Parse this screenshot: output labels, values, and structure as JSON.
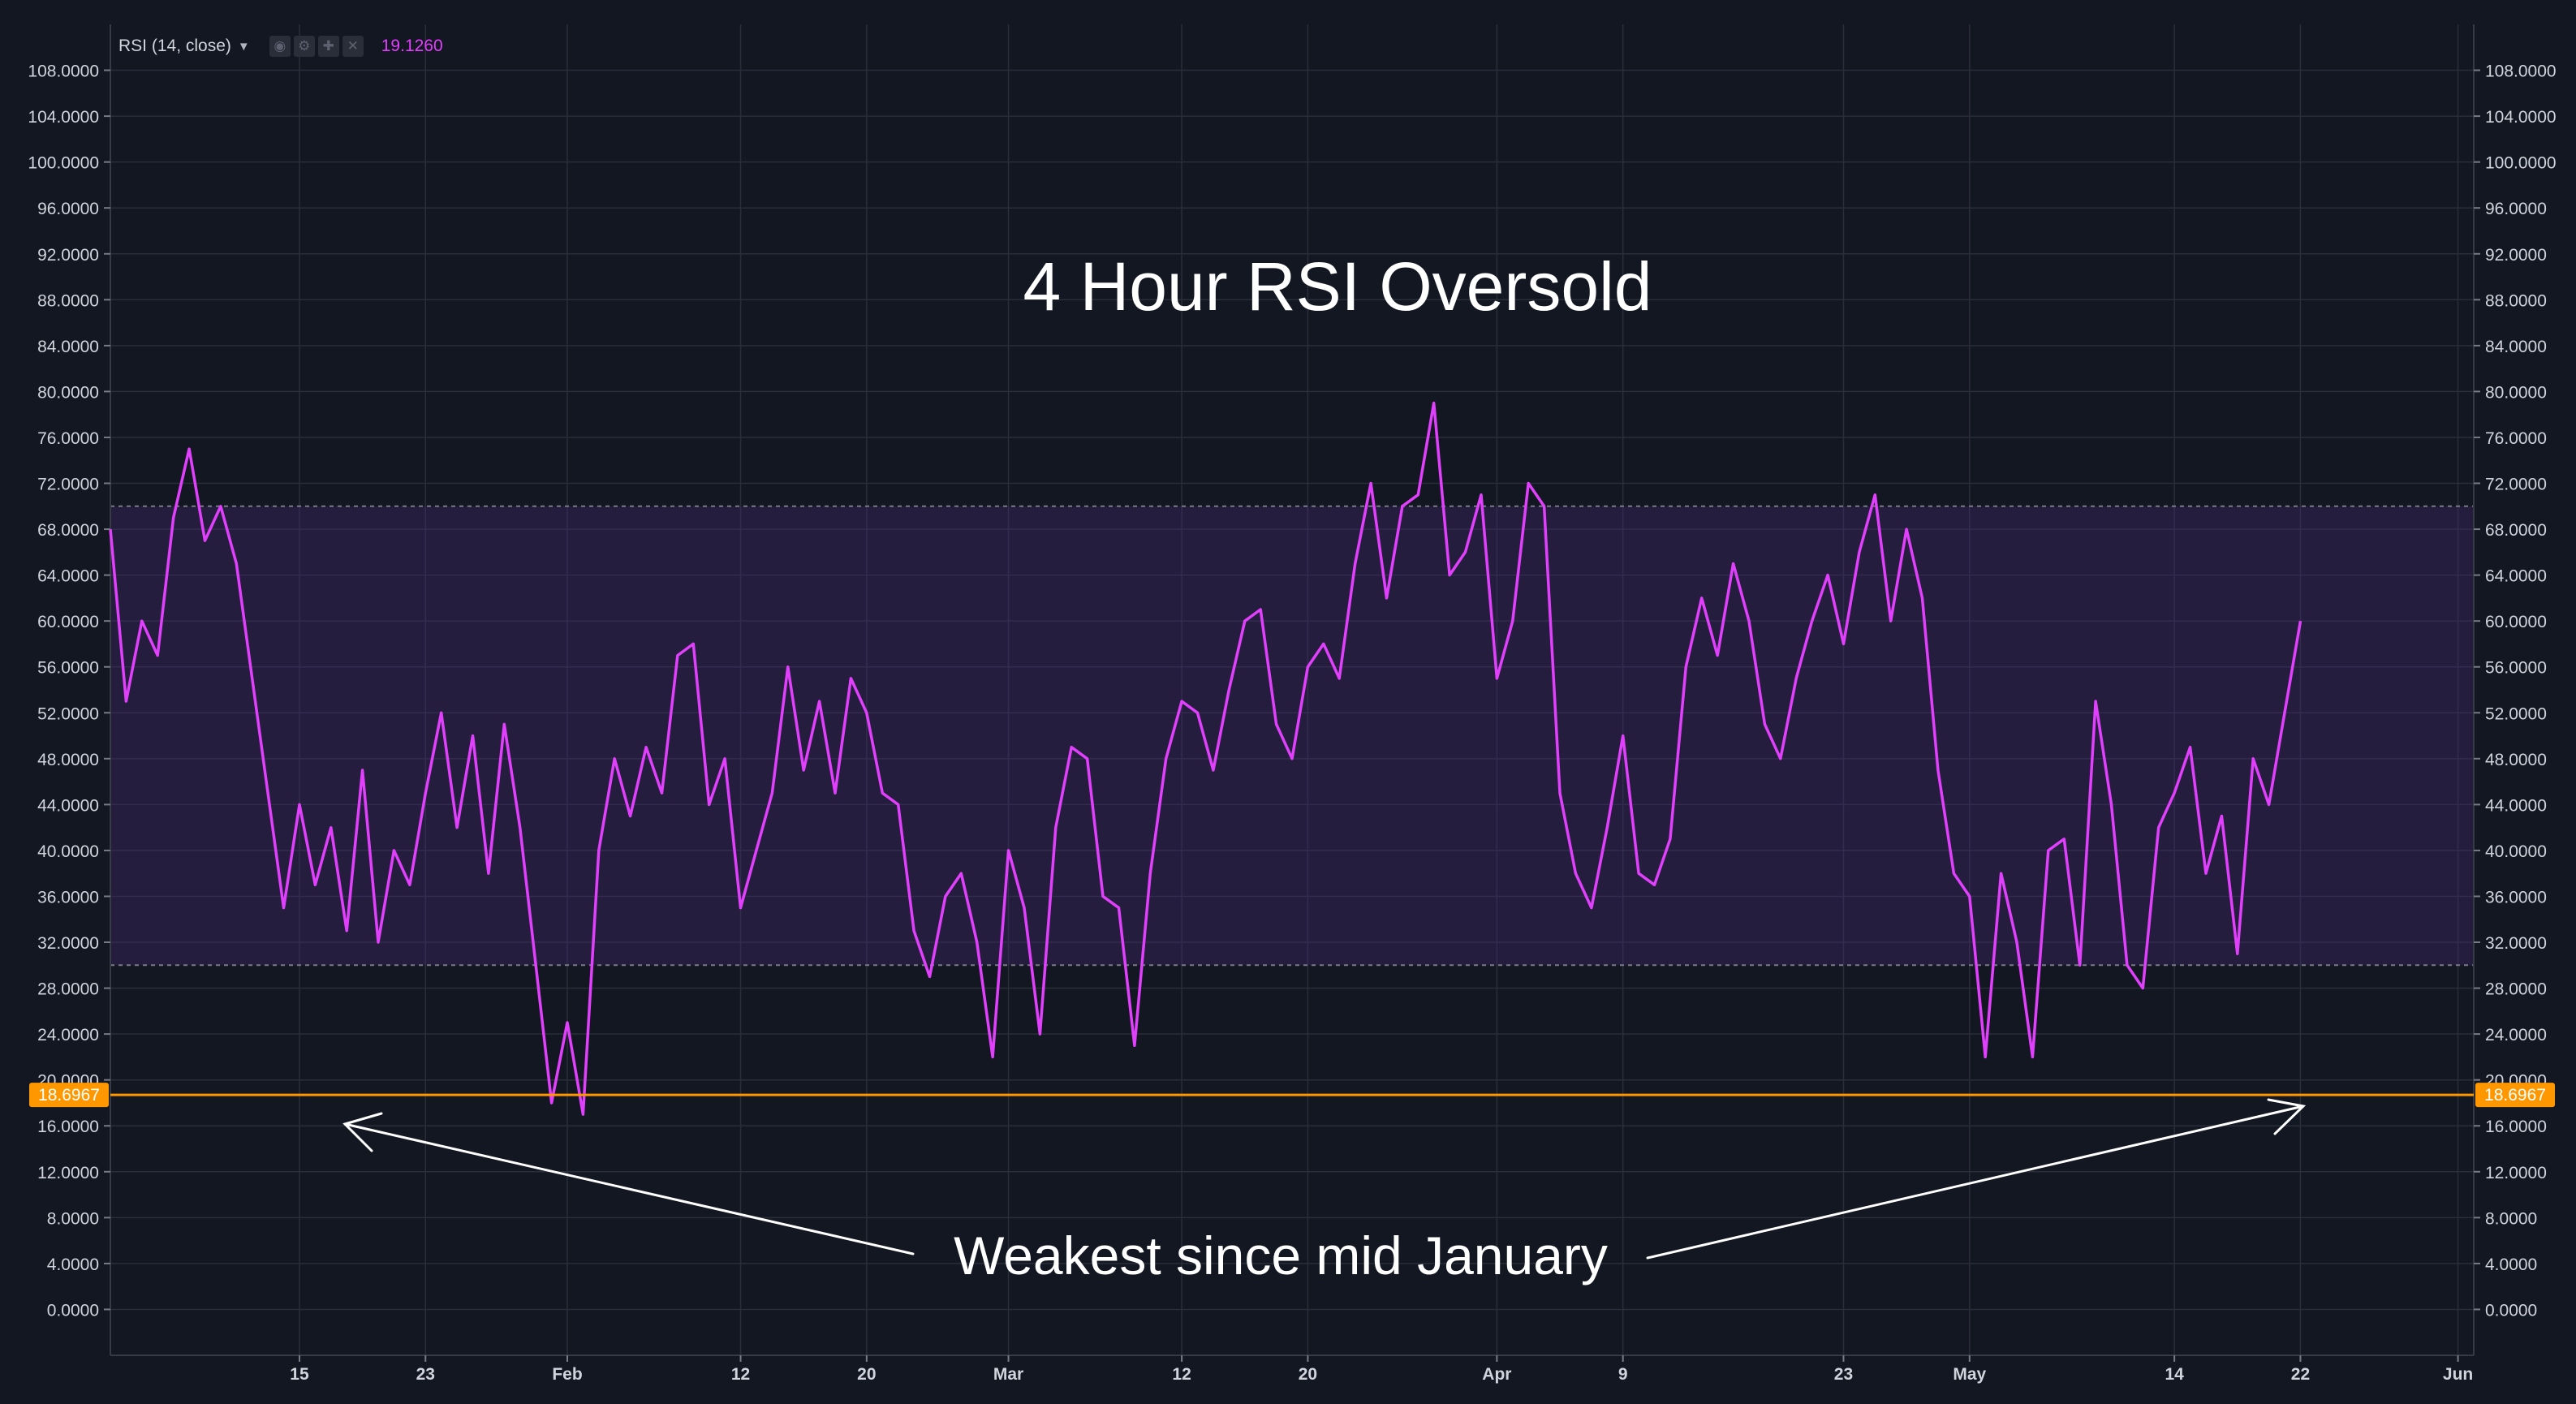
{
  "chart_data": {
    "type": "line",
    "title": "4 Hour RSI Oversold",
    "indicator_label": "RSI (14, close)",
    "current_value": "19.1260",
    "annotation": "Weakest since mid January",
    "marked_level": {
      "value": 18.6967,
      "label": "18.6967",
      "color": "#ff9800"
    },
    "band": {
      "upper": 70,
      "lower": 30
    },
    "ylim": [
      -4,
      112
    ],
    "y_ticks": [
      "0.0000",
      "4.0000",
      "8.0000",
      "12.0000",
      "16.0000",
      "20.0000",
      "24.0000",
      "28.0000",
      "32.0000",
      "36.0000",
      "40.0000",
      "44.0000",
      "48.0000",
      "52.0000",
      "56.0000",
      "60.0000",
      "64.0000",
      "68.0000",
      "72.0000",
      "76.0000",
      "80.0000",
      "84.0000",
      "88.0000",
      "92.0000",
      "96.0000",
      "100.0000",
      "104.0000",
      "108.0000"
    ],
    "x_ticks": [
      {
        "label": "15",
        "date": "2018-01-15"
      },
      {
        "label": "23",
        "date": "2018-01-23"
      },
      {
        "label": "Feb",
        "date": "2018-02-01"
      },
      {
        "label": "12",
        "date": "2018-02-12"
      },
      {
        "label": "20",
        "date": "2018-02-20"
      },
      {
        "label": "Mar",
        "date": "2018-03-01"
      },
      {
        "label": "12",
        "date": "2018-03-12"
      },
      {
        "label": "20",
        "date": "2018-03-20"
      },
      {
        "label": "Apr",
        "date": "2018-04-01"
      },
      {
        "label": "9",
        "date": "2018-04-09"
      },
      {
        "label": "23",
        "date": "2018-04-23"
      },
      {
        "label": "May",
        "date": "2018-05-01"
      },
      {
        "label": "14",
        "date": "2018-05-14"
      },
      {
        "label": "22",
        "date": "2018-05-22"
      },
      {
        "label": "Jun",
        "date": "2018-06-01"
      }
    ],
    "xlim": [
      "2018-01-03",
      "2018-06-02"
    ],
    "series": [
      {
        "color": "#e040fb",
        "points": [
          [
            "2018-01-03",
            68
          ],
          [
            "2018-01-04",
            53
          ],
          [
            "2018-01-05",
            60
          ],
          [
            "2018-01-06",
            57
          ],
          [
            "2018-01-07",
            69
          ],
          [
            "2018-01-08",
            75
          ],
          [
            "2018-01-09",
            67
          ],
          [
            "2018-01-10",
            70
          ],
          [
            "2018-01-11",
            65
          ],
          [
            "2018-01-12",
            55
          ],
          [
            "2018-01-13",
            45
          ],
          [
            "2018-01-14",
            35
          ],
          [
            "2018-01-15",
            44
          ],
          [
            "2018-01-16",
            37
          ],
          [
            "2018-01-17",
            42
          ],
          [
            "2018-01-18",
            33
          ],
          [
            "2018-01-19",
            47
          ],
          [
            "2018-01-20",
            32
          ],
          [
            "2018-01-21",
            40
          ],
          [
            "2018-01-22",
            37
          ],
          [
            "2018-01-23",
            45
          ],
          [
            "2018-01-24",
            52
          ],
          [
            "2018-01-25",
            42
          ],
          [
            "2018-01-26",
            50
          ],
          [
            "2018-01-27",
            38
          ],
          [
            "2018-01-28",
            51
          ],
          [
            "2018-01-29",
            42
          ],
          [
            "2018-01-30",
            30
          ],
          [
            "2018-01-31",
            18
          ],
          [
            "2018-02-01",
            25
          ],
          [
            "2018-02-02",
            17
          ],
          [
            "2018-02-03",
            40
          ],
          [
            "2018-02-04",
            48
          ],
          [
            "2018-02-05",
            43
          ],
          [
            "2018-02-06",
            49
          ],
          [
            "2018-02-07",
            45
          ],
          [
            "2018-02-08",
            57
          ],
          [
            "2018-02-09",
            58
          ],
          [
            "2018-02-10",
            44
          ],
          [
            "2018-02-11",
            48
          ],
          [
            "2018-02-12",
            35
          ],
          [
            "2018-02-13",
            40
          ],
          [
            "2018-02-14",
            45
          ],
          [
            "2018-02-15",
            56
          ],
          [
            "2018-02-16",
            47
          ],
          [
            "2018-02-17",
            53
          ],
          [
            "2018-02-18",
            45
          ],
          [
            "2018-02-19",
            55
          ],
          [
            "2018-02-20",
            52
          ],
          [
            "2018-02-21",
            45
          ],
          [
            "2018-02-22",
            44
          ],
          [
            "2018-02-23",
            33
          ],
          [
            "2018-02-24",
            29
          ],
          [
            "2018-02-25",
            36
          ],
          [
            "2018-02-26",
            38
          ],
          [
            "2018-02-27",
            32
          ],
          [
            "2018-02-28",
            22
          ],
          [
            "2018-03-01",
            40
          ],
          [
            "2018-03-02",
            35
          ],
          [
            "2018-03-03",
            24
          ],
          [
            "2018-03-04",
            42
          ],
          [
            "2018-03-05",
            49
          ],
          [
            "2018-03-06",
            48
          ],
          [
            "2018-03-07",
            36
          ],
          [
            "2018-03-08",
            35
          ],
          [
            "2018-03-09",
            23
          ],
          [
            "2018-03-10",
            38
          ],
          [
            "2018-03-11",
            48
          ],
          [
            "2018-03-12",
            53
          ],
          [
            "2018-03-13",
            52
          ],
          [
            "2018-03-14",
            47
          ],
          [
            "2018-03-15",
            54
          ],
          [
            "2018-03-16",
            60
          ],
          [
            "2018-03-17",
            61
          ],
          [
            "2018-03-18",
            51
          ],
          [
            "2018-03-19",
            48
          ],
          [
            "2018-03-20",
            56
          ],
          [
            "2018-03-21",
            58
          ],
          [
            "2018-03-22",
            55
          ],
          [
            "2018-03-23",
            65
          ],
          [
            "2018-03-24",
            72
          ],
          [
            "2018-03-25",
            62
          ],
          [
            "2018-03-26",
            70
          ],
          [
            "2018-03-27",
            71
          ],
          [
            "2018-03-28",
            79
          ],
          [
            "2018-03-29",
            64
          ],
          [
            "2018-03-30",
            66
          ],
          [
            "2018-03-31",
            71
          ],
          [
            "2018-04-01",
            55
          ],
          [
            "2018-04-02",
            60
          ],
          [
            "2018-04-03",
            72
          ],
          [
            "2018-04-04",
            70
          ],
          [
            "2018-04-05",
            45
          ],
          [
            "2018-04-06",
            38
          ],
          [
            "2018-04-07",
            35
          ],
          [
            "2018-04-08",
            42
          ],
          [
            "2018-04-09",
            50
          ],
          [
            "2018-04-10",
            38
          ],
          [
            "2018-04-11",
            37
          ],
          [
            "2018-04-12",
            41
          ],
          [
            "2018-04-13",
            56
          ],
          [
            "2018-04-14",
            62
          ],
          [
            "2018-04-15",
            57
          ],
          [
            "2018-04-16",
            65
          ],
          [
            "2018-04-17",
            60
          ],
          [
            "2018-04-18",
            51
          ],
          [
            "2018-04-19",
            48
          ],
          [
            "2018-04-20",
            55
          ],
          [
            "2018-04-21",
            60
          ],
          [
            "2018-04-22",
            64
          ],
          [
            "2018-04-23",
            58
          ],
          [
            "2018-04-24",
            66
          ],
          [
            "2018-04-25",
            71
          ],
          [
            "2018-04-26",
            60
          ],
          [
            "2018-04-27",
            68
          ],
          [
            "2018-04-28",
            62
          ],
          [
            "2018-04-29",
            47
          ],
          [
            "2018-04-30",
            38
          ],
          [
            "2018-05-01",
            36
          ],
          [
            "2018-05-02",
            22
          ],
          [
            "2018-05-03",
            38
          ],
          [
            "2018-05-04",
            32
          ],
          [
            "2018-05-05",
            22
          ],
          [
            "2018-05-06",
            40
          ],
          [
            "2018-05-07",
            41
          ],
          [
            "2018-05-08",
            30
          ],
          [
            "2018-05-09",
            53
          ],
          [
            "2018-05-10",
            44
          ],
          [
            "2018-05-11",
            30
          ],
          [
            "2018-05-12",
            28
          ],
          [
            "2018-05-13",
            42
          ],
          [
            "2018-05-14",
            45
          ],
          [
            "2018-05-15",
            49
          ],
          [
            "2018-05-16",
            38
          ],
          [
            "2018-05-17",
            43
          ],
          [
            "2018-05-18",
            31
          ],
          [
            "2018-05-19",
            48
          ],
          [
            "2018-05-20",
            44
          ],
          [
            "2018-05-21",
            52
          ],
          [
            "2018-05-22",
            60
          ]
        ]
      }
    ]
  }
}
